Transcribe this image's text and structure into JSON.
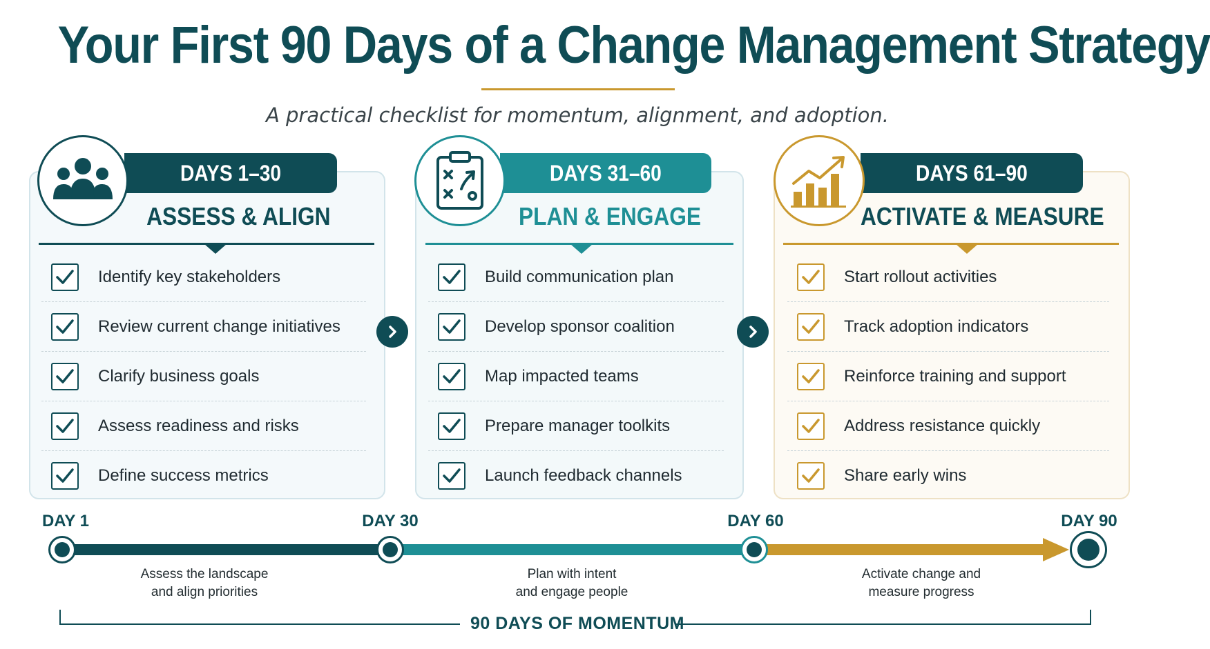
{
  "header": {
    "title": "Your First 90 Days of a Change Management Strategy",
    "subtitle": "A practical checklist for momentum, alignment, and adoption."
  },
  "colors": {
    "navy": "#0f4c55",
    "teal": "#1e8f95",
    "gold": "#c9982e",
    "title": "#0f4c55"
  },
  "phases": [
    {
      "days": "DAYS 1–30",
      "title": "ASSESS & ALIGN",
      "icon": "people-group-icon",
      "items": [
        "Identify key stakeholders",
        "Review current change initiatives",
        "Clarify business goals",
        "Assess readiness and risks",
        "Define success metrics"
      ]
    },
    {
      "days": "DAYS 31–60",
      "title": "PLAN & ENGAGE",
      "icon": "strategy-clipboard-icon",
      "items": [
        "Build communication plan",
        "Develop sponsor coalition",
        "Map impacted teams",
        "Prepare manager toolkits",
        "Launch feedback channels"
      ]
    },
    {
      "days": "DAYS 61–90",
      "title": "ACTIVATE & MEASURE",
      "icon": "growth-chart-icon",
      "items": [
        "Start rollout activities",
        "Track adoption indicators",
        "Reinforce training and support",
        "Address resistance quickly",
        "Share early wins"
      ]
    }
  ],
  "timeline": {
    "markers": [
      "DAY 1",
      "DAY 30",
      "DAY 60",
      "DAY 90"
    ],
    "descriptions": [
      [
        "Assess the landscape",
        "and align priorities"
      ],
      [
        "Plan with intent",
        "and engage people"
      ],
      [
        "Activate change and",
        "measure progress"
      ]
    ],
    "footer": "90 DAYS OF MOMENTUM"
  }
}
